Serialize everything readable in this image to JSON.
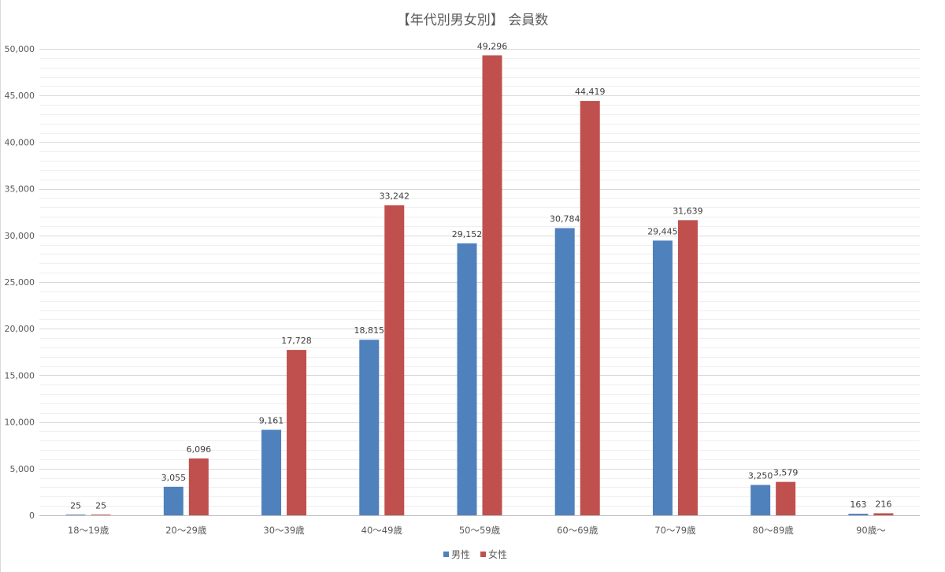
{
  "chart_data": {
    "type": "bar",
    "title": "【年代別男女別】 会員数",
    "xlabel": "",
    "ylabel": "",
    "ylim": [
      0,
      50000
    ],
    "y_major_step": 5000,
    "grid": true,
    "legend_position": "bottom",
    "categories": [
      "18〜19歳",
      "20〜29歳",
      "30〜39歳",
      "40〜49歳",
      "50〜59歳",
      "60〜69歳",
      "70〜79歳",
      "80〜89歳",
      "90歳〜"
    ],
    "y_tick_labels": [
      "0",
      "5,000",
      "10,000",
      "15,000",
      "20,000",
      "25,000",
      "30,000",
      "35,000",
      "40,000",
      "45,000",
      "50,000"
    ],
    "series": [
      {
        "name": "男性",
        "color": "#4f81bd",
        "values": [
          25,
          3055,
          9161,
          18815,
          29152,
          30784,
          29445,
          3250,
          163
        ],
        "labels": [
          "25",
          "3,055",
          "9,161",
          "18,815",
          "29,152",
          "30,784",
          "29,445",
          "3,250",
          "163"
        ]
      },
      {
        "name": "女性",
        "color": "#c0504d",
        "values": [
          25,
          6096,
          17728,
          33242,
          49296,
          44419,
          31639,
          3579,
          216
        ],
        "labels": [
          "25",
          "6,096",
          "17,728",
          "33,242",
          "49,296",
          "44,419",
          "31,639",
          "3,579",
          "216"
        ]
      }
    ]
  }
}
